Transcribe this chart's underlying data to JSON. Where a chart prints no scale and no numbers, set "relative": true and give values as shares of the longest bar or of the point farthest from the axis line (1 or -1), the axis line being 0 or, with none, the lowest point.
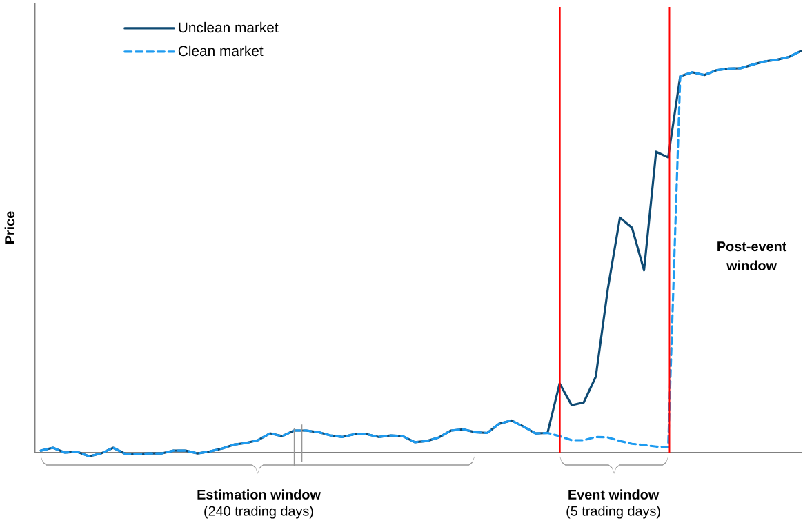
{
  "chart_data": {
    "type": "line",
    "relative": true,
    "ylabel": "Price",
    "categories": [
      null,
      null,
      null,
      null,
      null,
      null,
      null,
      null,
      null,
      null,
      null,
      null,
      null,
      null,
      null,
      null,
      null,
      null,
      null,
      null,
      null,
      null,
      null,
      null,
      null,
      null,
      null,
      null,
      null,
      null,
      null,
      null,
      null,
      null,
      null,
      null,
      null,
      null,
      null,
      null,
      null,
      null,
      null,
      null,
      null,
      null,
      null,
      null,
      null,
      null,
      null,
      null,
      null,
      null,
      null,
      null,
      null,
      null,
      null,
      null,
      null,
      null,
      null,
      null
    ],
    "series": [
      {
        "name": "Unclean market",
        "color": "#0e4a73",
        "line_style": "solid",
        "values": [
          0.005,
          0.012,
          0,
          0.002,
          -0.009,
          -0.002,
          0.012,
          -0.003,
          -0.003,
          -0.002,
          -0.002,
          0.005,
          0.005,
          -0.002,
          0.003,
          0.01,
          0.02,
          0.024,
          0.031,
          0.048,
          0.041,
          0.055,
          0.055,
          0.051,
          0.043,
          0.039,
          0.046,
          0.046,
          0.039,
          0.043,
          0.041,
          0.026,
          0.029,
          0.038,
          0.055,
          0.058,
          0.051,
          0.049,
          0.072,
          0.08,
          0.065,
          0.048,
          0.049,
          0.172,
          0.118,
          0.125,
          0.189,
          0.408,
          0.585,
          0.56,
          0.454,
          0.749,
          0.735,
          0.937,
          0.947,
          0.94,
          0.952,
          0.956,
          0.957,
          0.966,
          0.974,
          0.978,
          0.985,
          1
        ]
      },
      {
        "name": "Clean market",
        "color": "#1e9bf0",
        "line_style": "dashed",
        "values": [
          0.005,
          0.012,
          0,
          0.002,
          -0.009,
          -0.002,
          0.012,
          -0.003,
          -0.003,
          -0.002,
          -0.002,
          0.005,
          0.005,
          -0.002,
          0.003,
          0.01,
          0.02,
          0.024,
          0.031,
          0.048,
          0.041,
          0.055,
          0.055,
          0.051,
          0.043,
          0.039,
          0.046,
          0.046,
          0.039,
          0.043,
          0.041,
          0.026,
          0.029,
          0.038,
          0.055,
          0.058,
          0.051,
          0.049,
          0.072,
          0.08,
          0.065,
          0.048,
          0.049,
          0.041,
          0.031,
          0.031,
          0.039,
          0.038,
          0.029,
          0.022,
          0.019,
          0.015,
          0.014,
          0.937,
          0.947,
          0.94,
          0.952,
          0.956,
          0.957,
          0.966,
          0.974,
          0.978,
          0.985,
          1
        ]
      }
    ],
    "annotations": [
      "Estimation window",
      "(240 trading days)",
      "Event window",
      "(5 trading days)",
      "Post-event window"
    ],
    "legend": "top left",
    "marker": "none"
  }
}
